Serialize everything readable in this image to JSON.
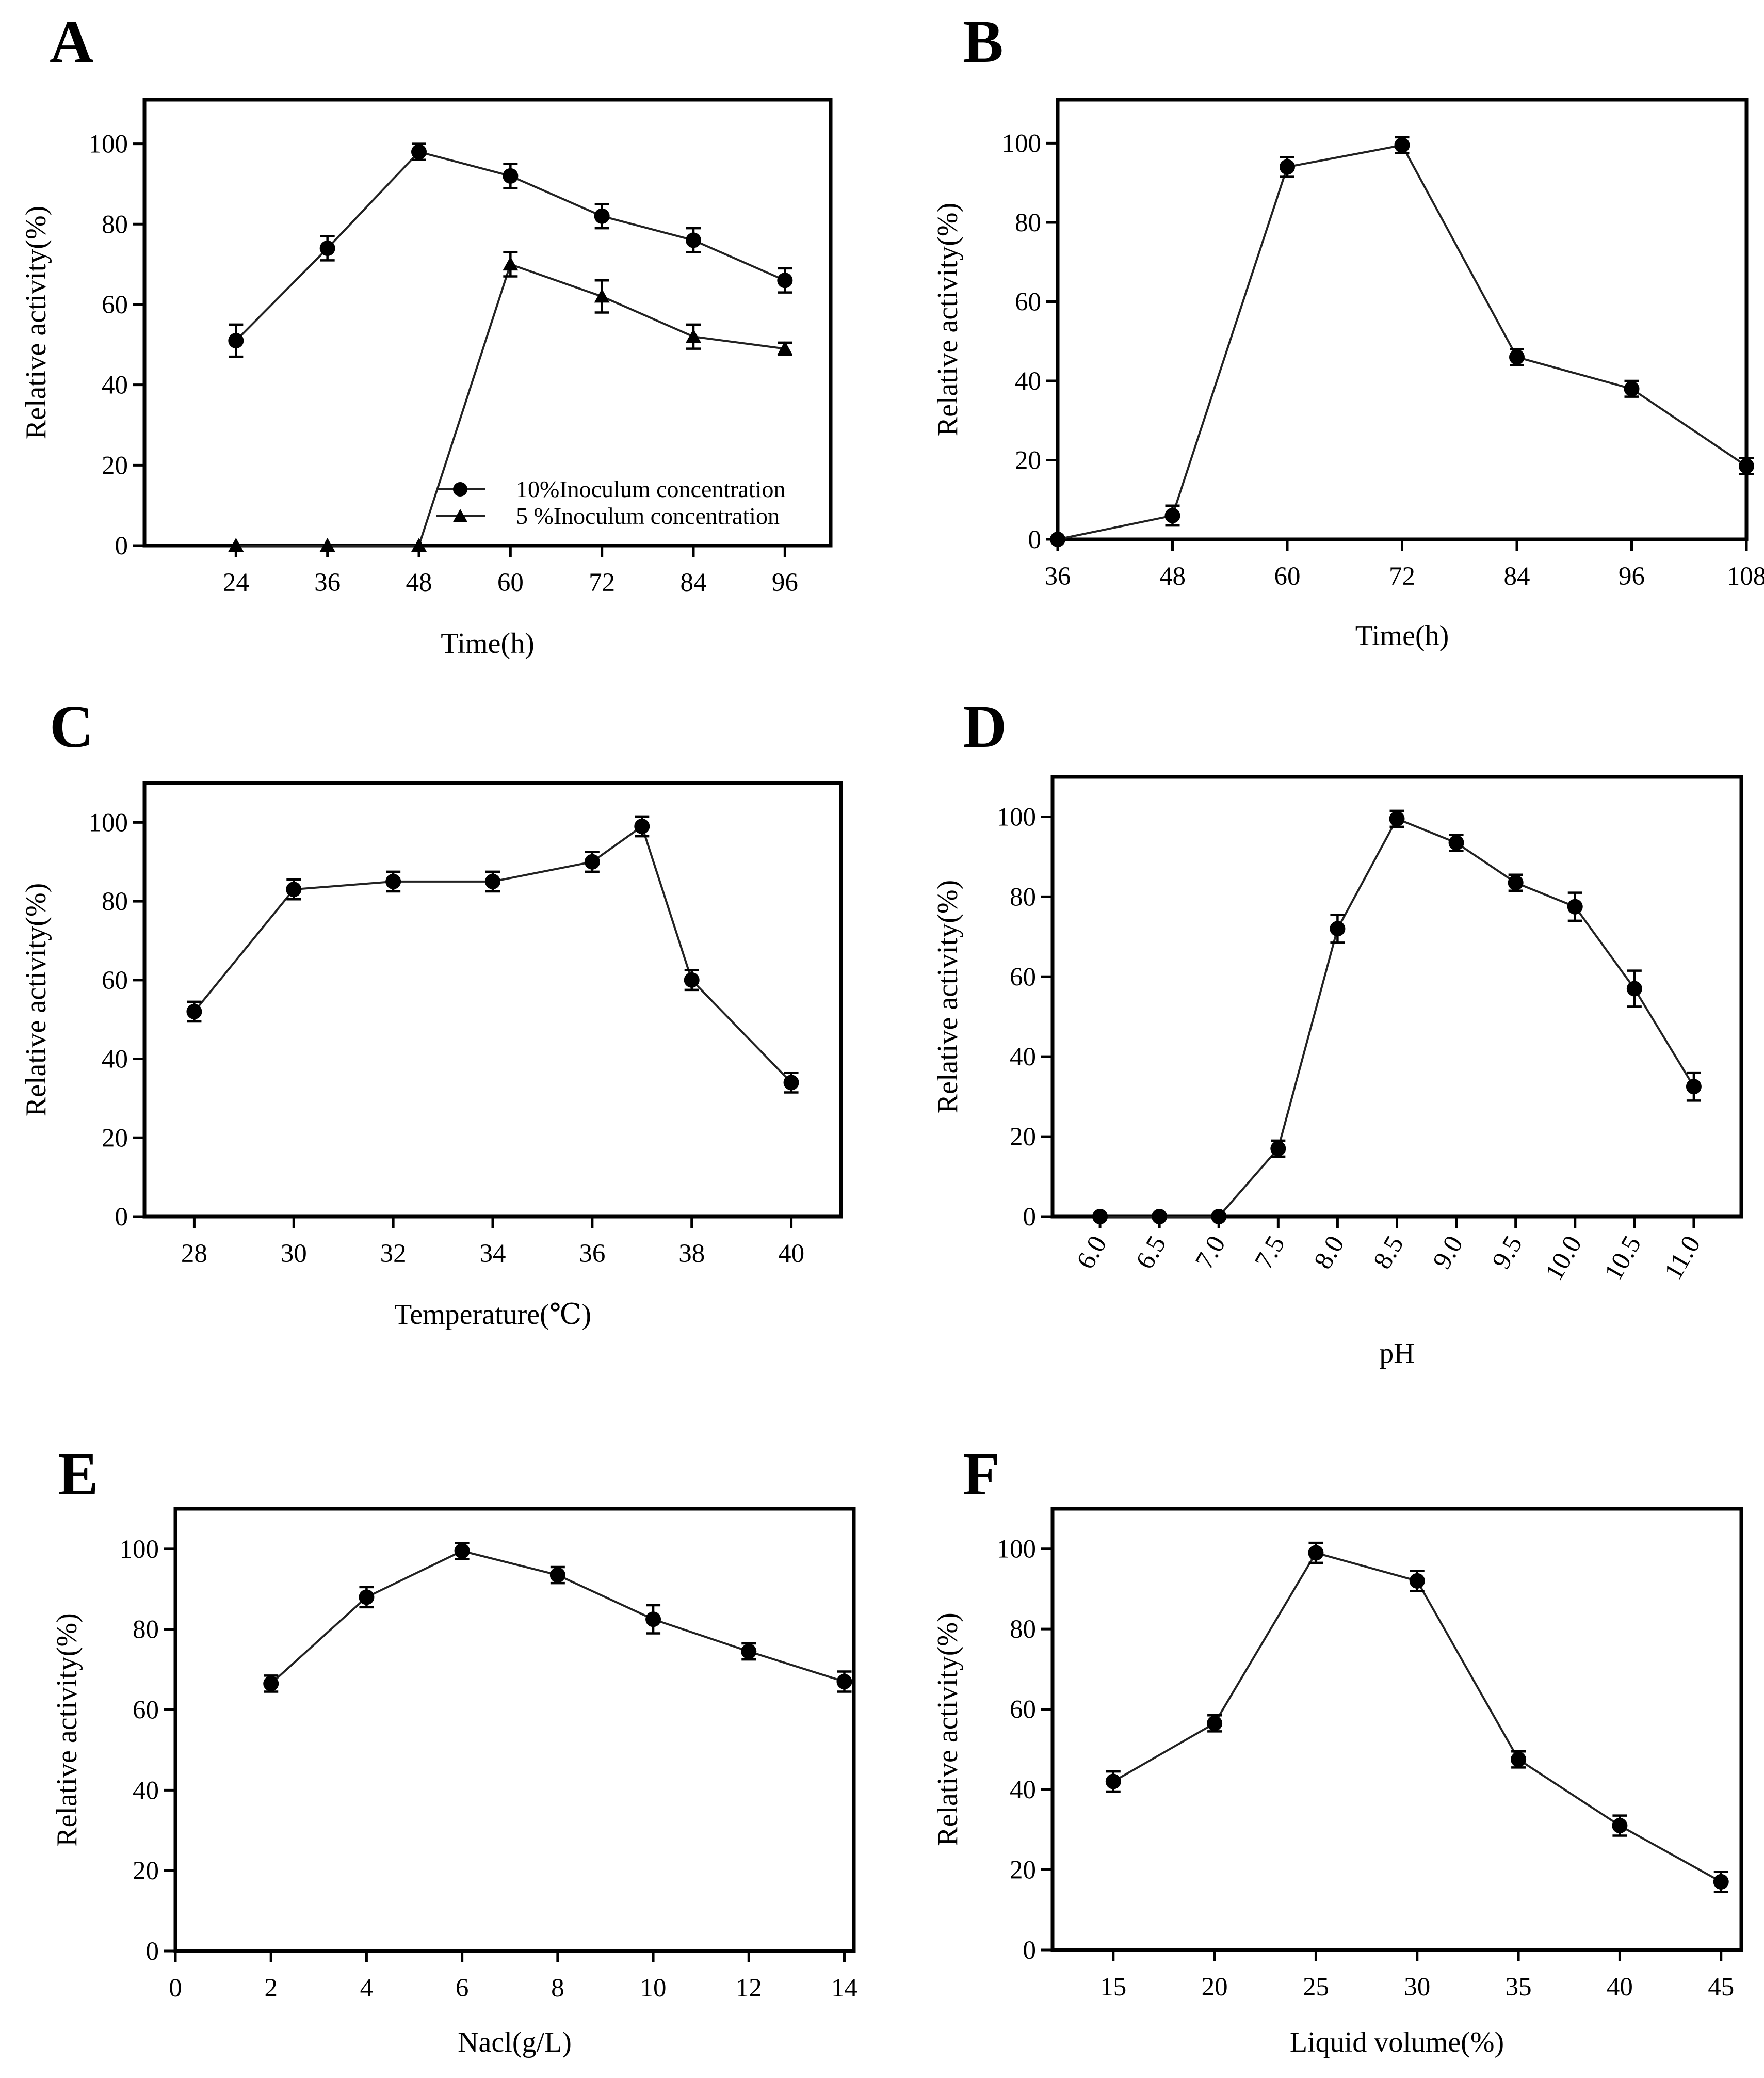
{
  "chart_data": [
    {
      "panel": "A",
      "type": "line",
      "xlabel": "Time(h)",
      "ylabel": "Relative activity(%)",
      "x_tick_labels": [
        "24",
        "36",
        "48",
        "60",
        "72",
        "84",
        "96"
      ],
      "y_tick_labels": [
        "0",
        "20",
        "40",
        "60",
        "80",
        "100"
      ],
      "xlim": [
        12,
        102
      ],
      "ylim": [
        0,
        111
      ],
      "legend_position": "bottom-right",
      "series": [
        {
          "name": "10%Inoculum concentration",
          "marker": "circle",
          "x": [
            24,
            36,
            48,
            60,
            72,
            84,
            96
          ],
          "y": [
            51,
            74,
            98,
            92,
            82,
            76,
            66
          ],
          "err": [
            4,
            3,
            2,
            3,
            3,
            3,
            3
          ]
        },
        {
          "name": "5 %Inoculum concentration",
          "marker": "triangle",
          "x": [
            24,
            36,
            48,
            60,
            72,
            84,
            96
          ],
          "y": [
            0,
            0,
            0,
            70,
            62,
            52,
            49
          ],
          "err": [
            0,
            0,
            0,
            3,
            4,
            3,
            1.5
          ]
        }
      ]
    },
    {
      "panel": "B",
      "type": "line",
      "xlabel": "Time(h)",
      "ylabel": "Relative activity(%)",
      "x_tick_labels": [
        "36",
        "48",
        "60",
        "72",
        "84",
        "96",
        "108"
      ],
      "y_tick_labels": [
        "0",
        "20",
        "40",
        "60",
        "80",
        "100"
      ],
      "xlim": [
        36,
        108
      ],
      "ylim": [
        0,
        111
      ],
      "series": [
        {
          "marker": "circle",
          "x": [
            36,
            48,
            60,
            72,
            84,
            96,
            108
          ],
          "y": [
            0,
            6,
            94,
            99.5,
            46,
            38,
            18.5
          ],
          "err": [
            0,
            2.5,
            2.5,
            2,
            2,
            2,
            2
          ]
        }
      ]
    },
    {
      "panel": "C",
      "type": "line",
      "xlabel": "Temperature(℃)",
      "ylabel": "Relative activity(%)",
      "x_tick_labels": [
        "28",
        "30",
        "32",
        "34",
        "36",
        "38",
        "40"
      ],
      "y_tick_labels": [
        "0",
        "20",
        "40",
        "60",
        "80",
        "100"
      ],
      "xlim": [
        27,
        41
      ],
      "ylim": [
        0,
        110
      ],
      "series": [
        {
          "marker": "circle",
          "x": [
            28,
            30,
            32,
            34,
            36,
            37,
            38,
            40
          ],
          "y": [
            52,
            83,
            85,
            85,
            90,
            99,
            60,
            34
          ],
          "err": [
            2.5,
            2.5,
            2.5,
            2.5,
            2.5,
            2.5,
            2.5,
            2.5
          ]
        }
      ]
    },
    {
      "panel": "D",
      "type": "line",
      "xlabel": "pH",
      "ylabel": "Relative activity(%)",
      "x_tick_labels": [
        "6.0",
        "6.5",
        "7.0",
        "7.5",
        "8.0",
        "8.5",
        "9.0",
        "9.5",
        "10.0",
        "10.5",
        "11.0"
      ],
      "y_tick_labels": [
        "0",
        "20",
        "40",
        "60",
        "80",
        "100"
      ],
      "xlim": [
        5.6,
        11.4
      ],
      "ylim": [
        0,
        110
      ],
      "series": [
        {
          "marker": "circle",
          "x": [
            6.0,
            6.5,
            7.0,
            7.5,
            8.0,
            8.5,
            9.0,
            9.5,
            10.0,
            10.5,
            11.0
          ],
          "y": [
            0,
            0,
            0,
            17,
            72,
            99.5,
            93.5,
            83.5,
            77.5,
            57,
            32.5
          ],
          "err": [
            0,
            0,
            0,
            2,
            3.5,
            2,
            2,
            2,
            3.5,
            4.5,
            3.5
          ]
        }
      ]
    },
    {
      "panel": "E",
      "type": "line",
      "xlabel": "Nacl(g/L)",
      "ylabel": "Relative activity(%)",
      "x_tick_labels": [
        "0",
        "2",
        "4",
        "6",
        "8",
        "10",
        "12",
        "14"
      ],
      "y_tick_labels": [
        "0",
        "20",
        "40",
        "60",
        "80",
        "100"
      ],
      "xlim": [
        0,
        14.2
      ],
      "ylim": [
        0,
        110
      ],
      "series": [
        {
          "marker": "circle",
          "x": [
            2,
            4,
            6,
            8,
            10,
            12,
            14
          ],
          "y": [
            66.5,
            88,
            99.5,
            93.5,
            82.5,
            74.5,
            67
          ],
          "err": [
            2,
            2.5,
            2,
            2,
            3.5,
            2,
            2.5
          ]
        }
      ]
    },
    {
      "panel": "F",
      "type": "line",
      "xlabel": "Liquid volume(%)",
      "ylabel": "Relative activity(%)",
      "x_tick_labels": [
        "15",
        "20",
        "25",
        "30",
        "35",
        "40",
        "45"
      ],
      "y_tick_labels": [
        "0",
        "20",
        "40",
        "60",
        "80",
        "100"
      ],
      "xlim": [
        12,
        46
      ],
      "ylim": [
        0,
        110
      ],
      "series": [
        {
          "marker": "circle",
          "x": [
            15,
            20,
            25,
            30,
            35,
            40,
            45
          ],
          "y": [
            42,
            56.5,
            99,
            92,
            47.5,
            31,
            17
          ],
          "err": [
            2.5,
            2,
            2.5,
            2.5,
            2,
            2.5,
            2.5
          ]
        }
      ]
    }
  ]
}
